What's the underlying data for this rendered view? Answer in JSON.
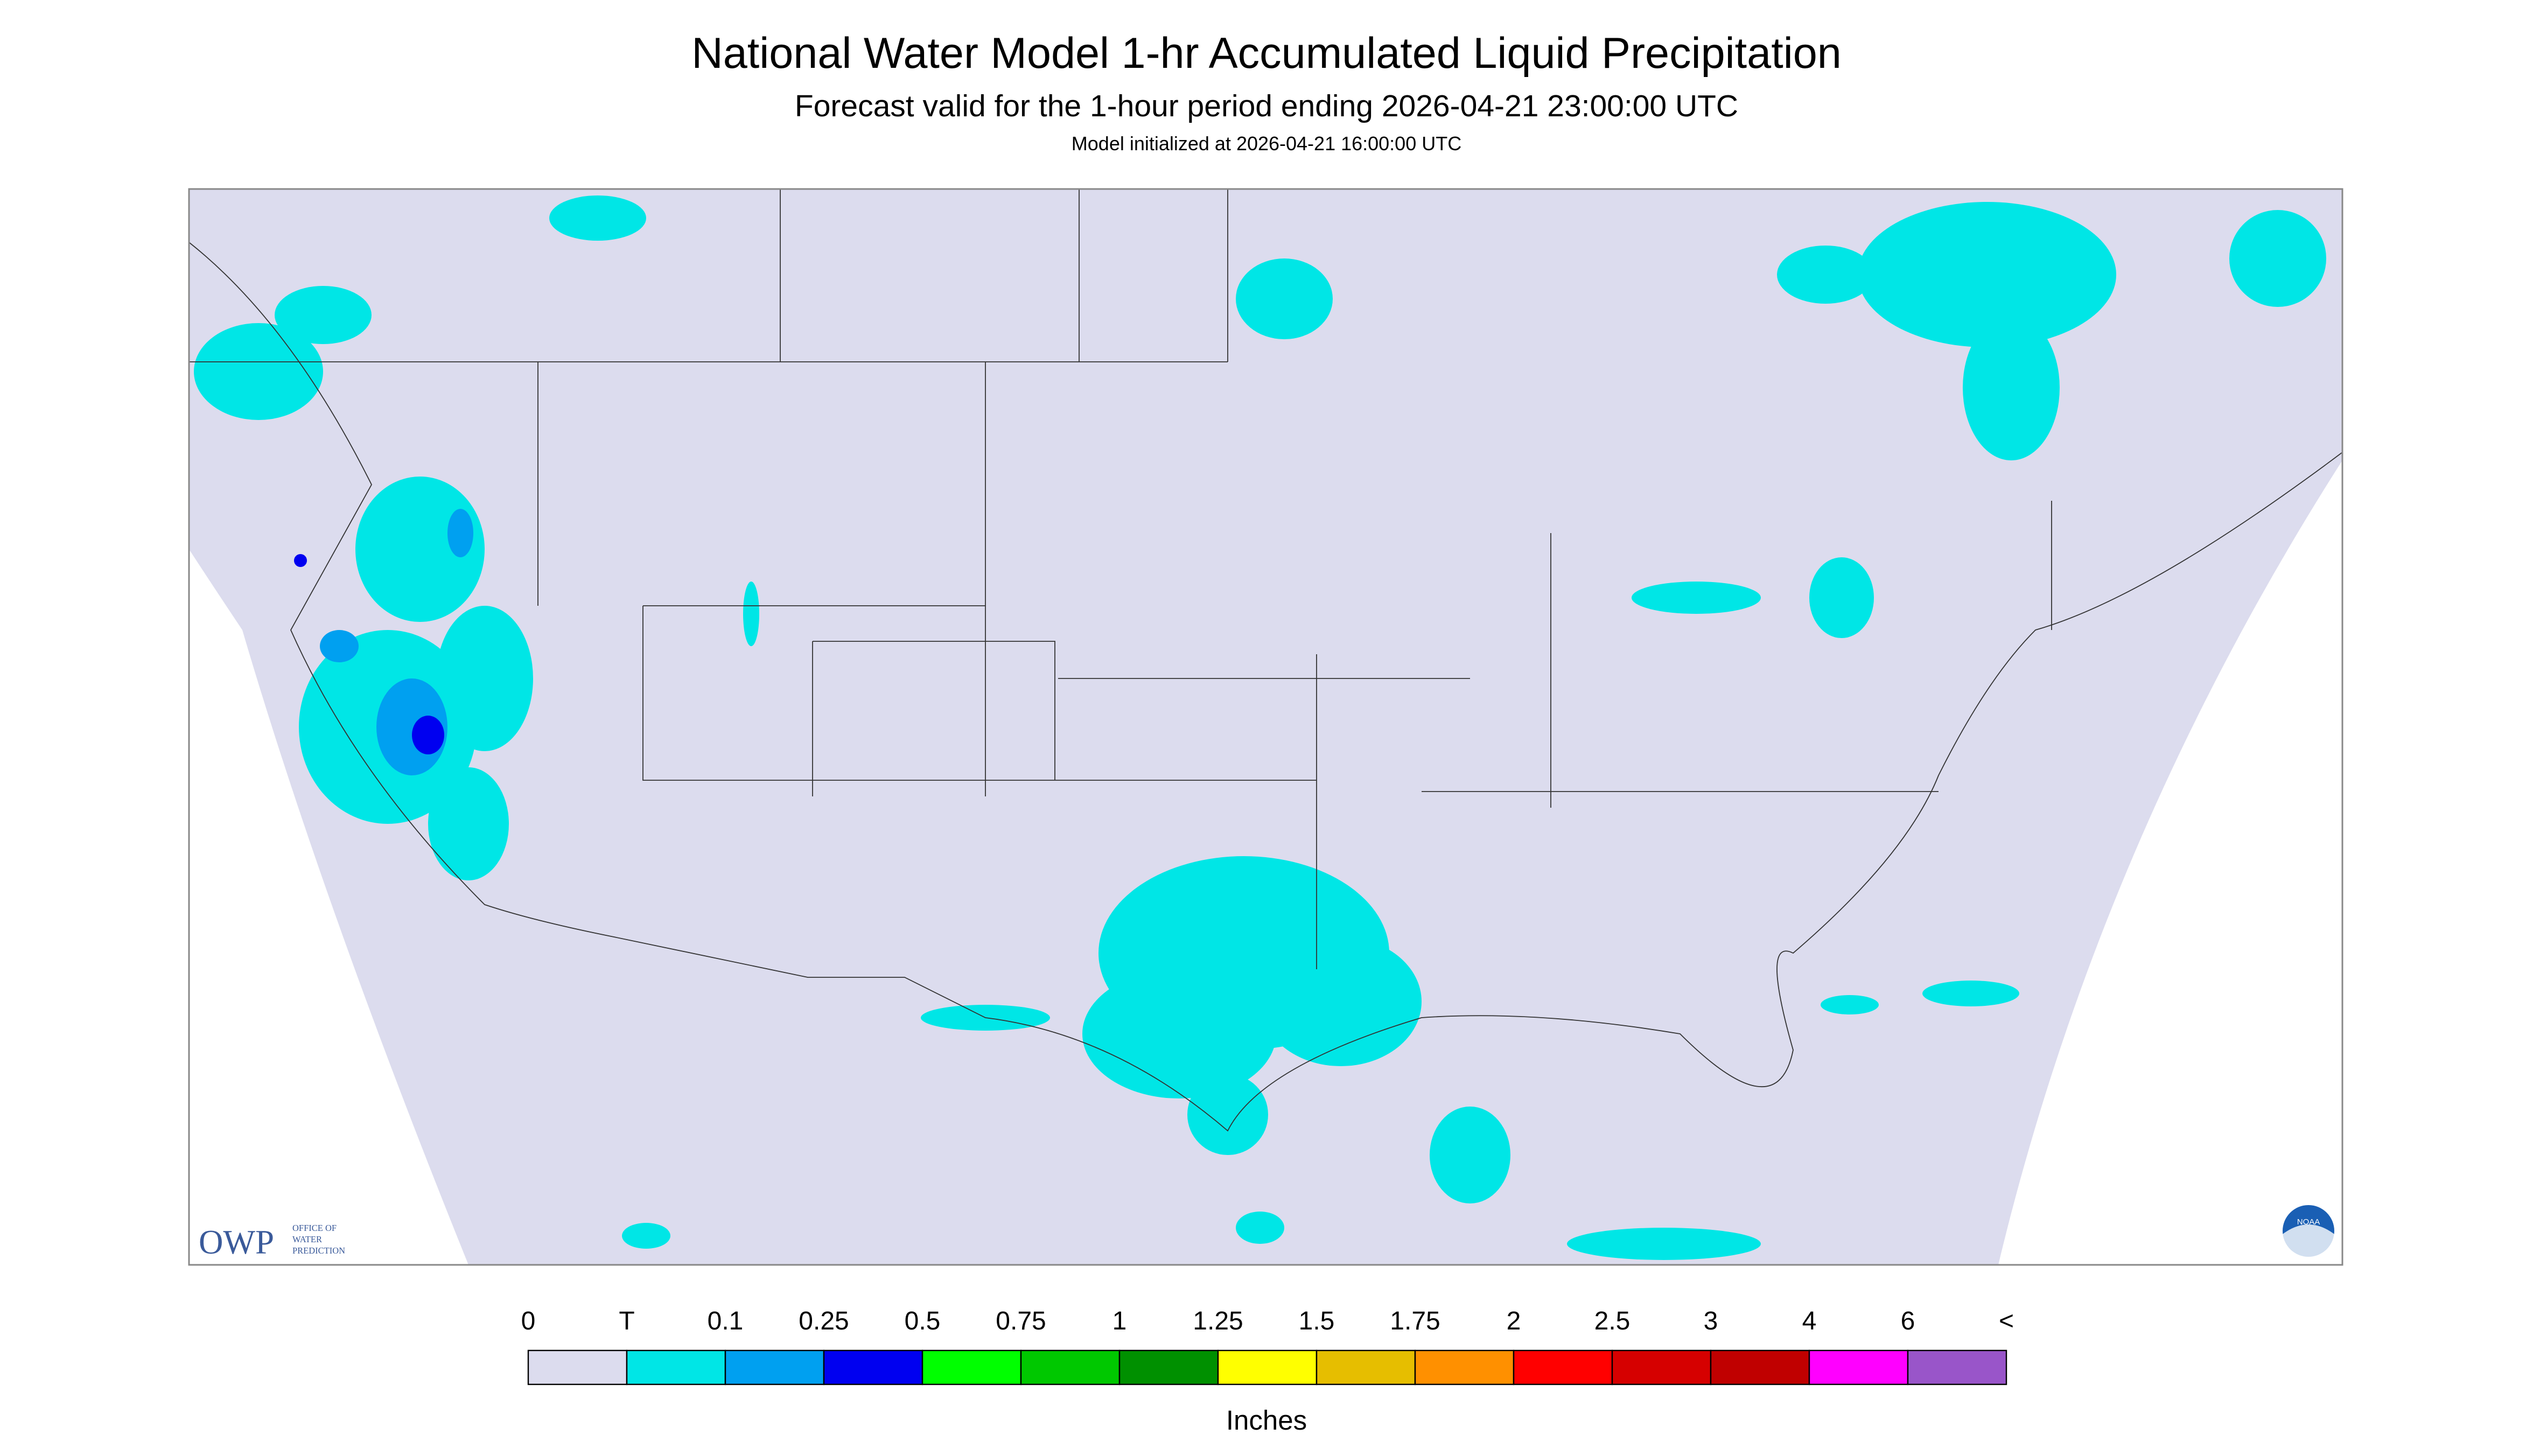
{
  "header": {
    "title": "National Water Model 1-hr Accumulated Liquid Precipitation",
    "subtitle": "Forecast valid for the 1-hour period ending 2026-04-21 23:00:00 UTC",
    "note": "Model initialized at 2026-04-21 16:00:00 UTC"
  },
  "logo": {
    "mark": "OWP",
    "lines": [
      "OFFICE OF",
      "WATER",
      "PREDICTION"
    ],
    "badge": "NOAA"
  },
  "legend": {
    "labels": [
      "0",
      "T",
      "0.1",
      "0.25",
      "0.5",
      "0.75",
      "1",
      "1.25",
      "1.5",
      "1.75",
      "2",
      "2.5",
      "3",
      "4",
      "6",
      "<"
    ],
    "colors": [
      "#dcdcee",
      "#00e6e6",
      "#00a0f0",
      "#0000f0",
      "#00ff00",
      "#00c800",
      "#009000",
      "#ffff00",
      "#e6be00",
      "#ff9000",
      "#ff0000",
      "#d60000",
      "#c00000",
      "#ff00ff",
      "#9955c9"
    ],
    "unit": "Inches"
  }
}
